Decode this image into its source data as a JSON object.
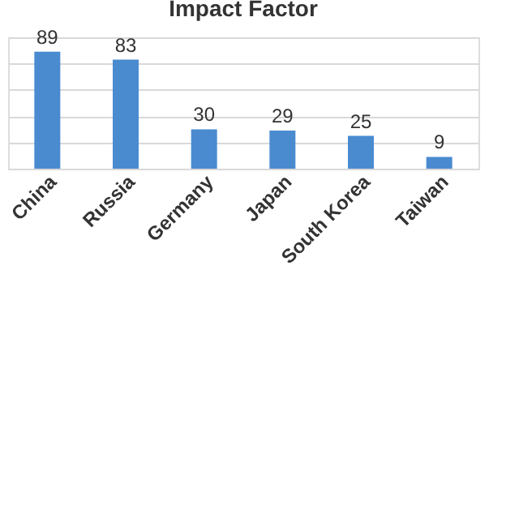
{
  "chart_data": {
    "type": "bar",
    "title": "Impact Factor",
    "categories": [
      "China",
      "Russia",
      "Germany",
      "Japan",
      "South Korea",
      "Taiwan"
    ],
    "values": [
      89,
      83,
      30,
      29,
      25,
      9
    ],
    "color": "#4a8bd0",
    "ylim": [
      0,
      100
    ],
    "grid": "y",
    "tick_labels": "x",
    "data_labels": true
  }
}
